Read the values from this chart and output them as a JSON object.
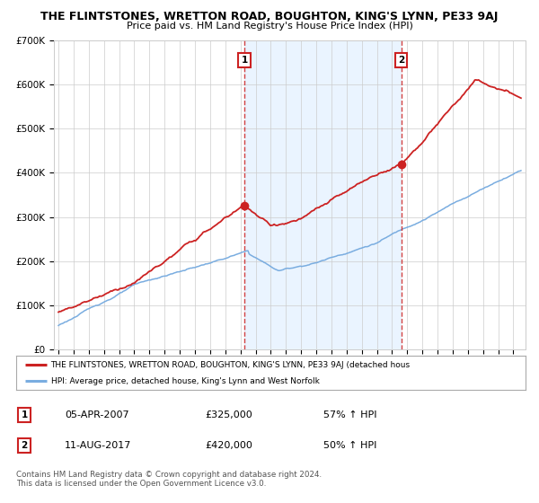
{
  "title": "THE FLINTSTONES, WRETTON ROAD, BOUGHTON, KING'S LYNN, PE33 9AJ",
  "subtitle": "Price paid vs. HM Land Registry's House Price Index (HPI)",
  "ylim": [
    0,
    700000
  ],
  "yticks": [
    0,
    100000,
    200000,
    300000,
    400000,
    500000,
    600000,
    700000
  ],
  "ytick_labels": [
    "£0",
    "£100K",
    "£200K",
    "£300K",
    "£400K",
    "£500K",
    "£600K",
    "£700K"
  ],
  "sale1_date": 2007.26,
  "sale1_price": 325000,
  "sale2_date": 2017.62,
  "sale2_price": 420000,
  "red_line_color": "#cc2222",
  "blue_line_color": "#7aade0",
  "shade_color": "#ddeeff",
  "grid_color": "#cccccc",
  "background_color": "#ffffff",
  "legend_red_label": "THE FLINTSTONES, WRETTON ROAD, BOUGHTON, KING'S LYNN, PE33 9AJ (detached hous",
  "legend_blue_label": "HPI: Average price, detached house, King's Lynn and West Norfolk",
  "table_row1": [
    "1",
    "05-APR-2007",
    "£325,000",
    "57% ↑ HPI"
  ],
  "table_row2": [
    "2",
    "11-AUG-2017",
    "£420,000",
    "50% ↑ HPI"
  ],
  "footnote": "Contains HM Land Registry data © Crown copyright and database right 2024.\nThis data is licensed under the Open Government Licence v3.0."
}
